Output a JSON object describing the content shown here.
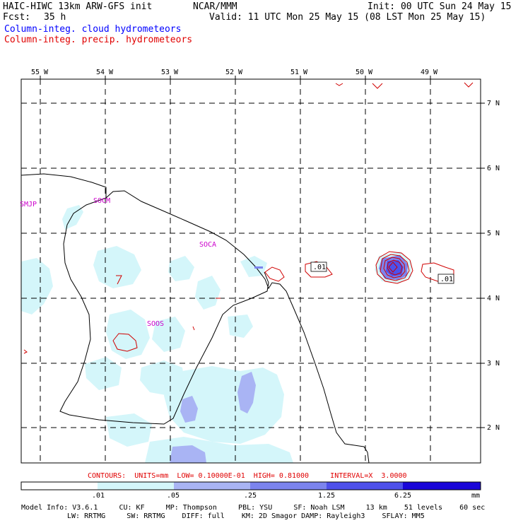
{
  "header": {
    "model_title": "HAIC-HIWC 13km ARW-GFS init",
    "org": "NCAR/MMM",
    "init": "Init: 00 UTC Sun 24 May 15",
    "fcst_label": "Fcst:",
    "fcst_value": "35 h",
    "valid": "Valid: 11 UTC Mon 25 May 15 (08 LST Mon 25 May 15)",
    "field_cloud": "Column-integ. cloud hydrometeors",
    "field_precip": "Column-integ. precip. hydrometeors"
  },
  "colors": {
    "cloud_label": "#0000ff",
    "precip_label": "#e00000",
    "contour": "#d00000",
    "place_label": "#cc00cc",
    "shade_1": "#d4f6fa",
    "shade_2": "#a9b4f4",
    "shade_3": "#7c84ee",
    "shade_4": "#4e50ea",
    "shade_5": "#2a20e4",
    "shade_6": "#1a06d8"
  },
  "map": {
    "lon_labels": [
      "55 W",
      "54 W",
      "53 W",
      "52 W",
      "51 W",
      "50 W",
      "49 W"
    ],
    "lat_labels": [
      "7 N",
      "6 N",
      "5 N",
      "4 N",
      "3 N",
      "2 N"
    ],
    "stations": [
      "SMJP",
      "SOCM",
      "SOCA",
      "SOOS"
    ],
    "contour_labels": [
      ".01",
      ".01"
    ]
  },
  "contour_info": "CONTOURS:  UNITS=mm  LOW= 0.10000E-01  HIGH= 0.81000     INTERVAL=X  3.0000",
  "colorbar": {
    "tick_labels": [
      ".01",
      ".05",
      ".25",
      "1.25",
      "6.25"
    ],
    "units": "mm"
  },
  "model_info": {
    "line1": "Model Info: V3.6.1     CU: KF     MP: Thompson     PBL: YSU     SF: Noah LSM     13 km    51 levels    60 sec",
    "line2": "LW: RRTMG     SW: RRTMG    DIFF: full    KM: 2D Smagor DAMP: Rayleigh3    SFLAY: MM5"
  }
}
